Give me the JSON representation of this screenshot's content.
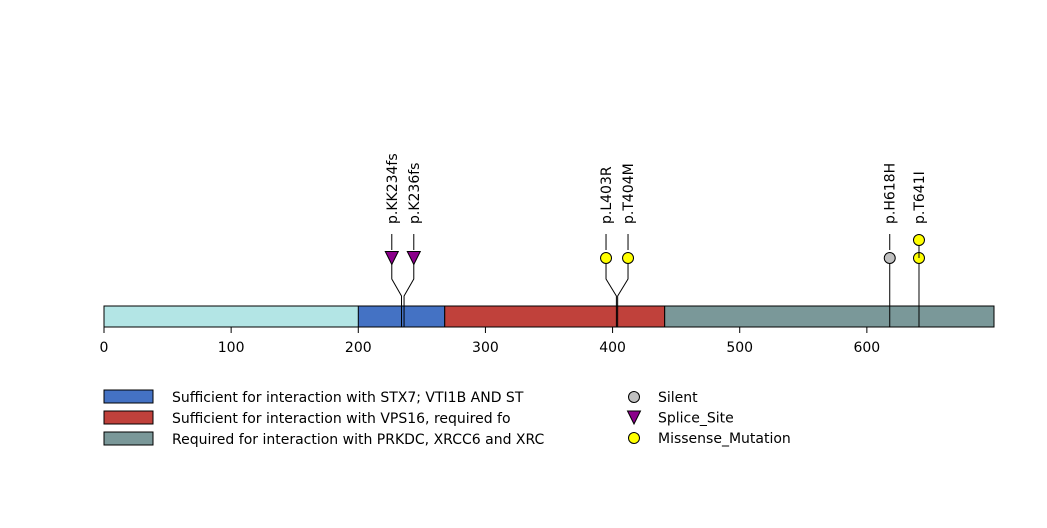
{
  "chart_data": {
    "type": "lollipop",
    "protein_length": 700,
    "xlim": [
      0,
      700
    ],
    "xticks": [
      0,
      100,
      200,
      300,
      400,
      500,
      600
    ],
    "background_color": "#b3e5e5",
    "domains": [
      {
        "label": "Sufficient for interaction with STX7; VTI1B AND ST",
        "start": 200,
        "end": 268,
        "color": "#4472c4"
      },
      {
        "label": "Sufficient for interaction with VPS16, required fo",
        "start": 268,
        "end": 441,
        "color": "#c0413b"
      },
      {
        "label": "Required for interaction with PRKDC, XRCC6 and XRC",
        "start": 441,
        "end": 700,
        "color": "#7a9899"
      }
    ],
    "mutations": [
      {
        "label": "p.KK234fs",
        "position": 234,
        "type": "Splice_Site",
        "count": 1
      },
      {
        "label": "p.K236fs",
        "position": 236,
        "type": "Splice_Site",
        "count": 1
      },
      {
        "label": "p.L403R",
        "position": 403,
        "type": "Missense_Mutation",
        "count": 1
      },
      {
        "label": "p.T404M",
        "position": 404,
        "type": "Missense_Mutation",
        "count": 1
      },
      {
        "label": "p.H618H",
        "position": 618,
        "type": "Silent",
        "count": 1
      },
      {
        "label": "p.T641I",
        "position": 641,
        "type": "Missense_Mutation",
        "count": 2
      }
    ],
    "mutation_types": [
      {
        "label": "Silent",
        "color": "#c0c0c0",
        "shape": "circle"
      },
      {
        "label": "Splice_Site",
        "color": "#8b008b",
        "shape": "triangle"
      },
      {
        "label": "Missense_Mutation",
        "color": "#ffff00",
        "shape": "circle"
      }
    ]
  }
}
